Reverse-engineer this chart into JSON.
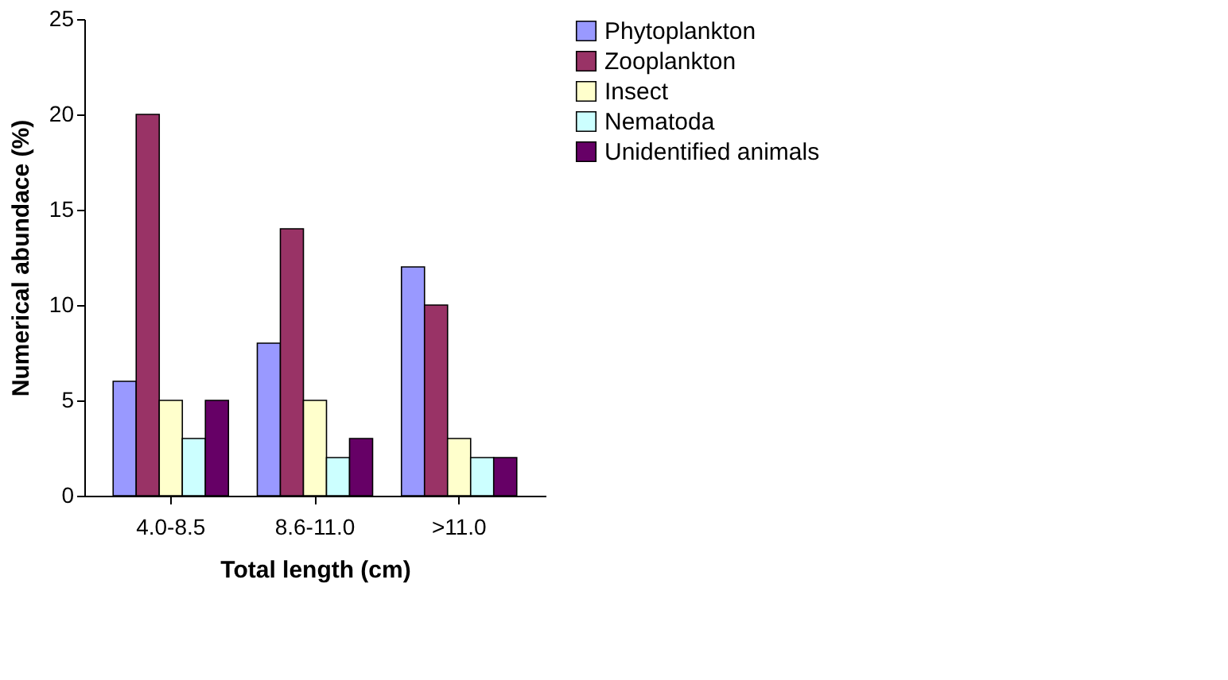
{
  "chart_data": {
    "type": "bar",
    "xlabel": "Total length (cm)",
    "ylabel": "Numerical abundace (%)",
    "categories": [
      "4.0-8.5",
      "8.6-11.0",
      ">11.0"
    ],
    "series": [
      {
        "name": "Phytoplankton",
        "color": "#9999ff",
        "values": [
          6,
          8,
          12
        ]
      },
      {
        "name": "Zooplankton",
        "color": "#993366",
        "values": [
          20,
          14,
          10
        ]
      },
      {
        "name": "Insect",
        "color": "#ffffcc",
        "values": [
          5,
          5,
          3
        ]
      },
      {
        "name": "Nematoda",
        "color": "#ccffff",
        "values": [
          3,
          2,
          2
        ]
      },
      {
        "name": "Unidentified animals",
        "color": "#660066",
        "values": [
          5,
          3,
          2
        ]
      }
    ],
    "ylim": [
      0,
      25
    ],
    "yticks": [
      0,
      5,
      10,
      15,
      20,
      25
    ],
    "grid": false,
    "legend": "right"
  }
}
